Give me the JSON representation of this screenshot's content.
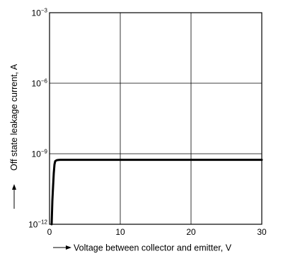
{
  "chart_data": {
    "type": "line",
    "title": "",
    "xlabel": "Voltage between collector and emitter, V",
    "ylabel": "Off state leakage current, A",
    "x_scale": "linear",
    "y_scale": "log",
    "xlim": [
      0,
      30
    ],
    "ylim": [
      1e-12,
      0.001
    ],
    "x_ticks": [
      {
        "value": 0,
        "label": "0"
      },
      {
        "value": 10,
        "label": "10"
      },
      {
        "value": 20,
        "label": "20"
      },
      {
        "value": 30,
        "label": "30"
      }
    ],
    "y_ticks": [
      {
        "value": 0.001,
        "base": "10",
        "exp": "−3"
      },
      {
        "value": 1e-06,
        "base": "10",
        "exp": "−6"
      },
      {
        "value": 1e-09,
        "base": "10",
        "exp": "−9"
      },
      {
        "value": 1e-12,
        "base": "10",
        "exp": "−12"
      }
    ],
    "grid": true,
    "series": [
      {
        "x": [
          0.3,
          0.4,
          0.5,
          0.6,
          0.7,
          0.8,
          1.0,
          1.2,
          1.5,
          2.0,
          5,
          10,
          15,
          20,
          25,
          30
        ],
        "y": [
          1e-12,
          1e-11,
          4e-11,
          1.5e-10,
          3.5e-10,
          4.8e-10,
          5.3e-10,
          5.4e-10,
          5.5e-10,
          5.5e-10,
          5.5e-10,
          5.5e-10,
          5.5e-10,
          5.5e-10,
          5.5e-10,
          5.5e-10
        ]
      }
    ]
  }
}
